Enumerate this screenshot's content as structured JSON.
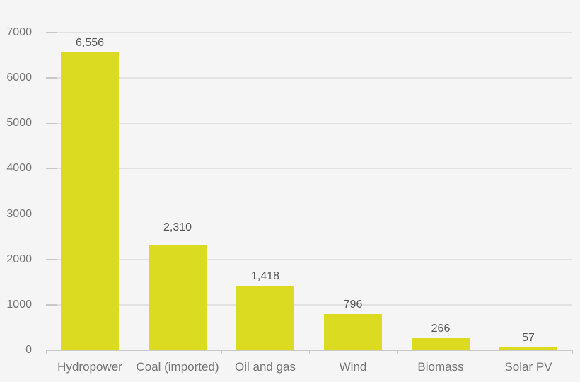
{
  "chart_data": {
    "type": "bar",
    "title": "",
    "xlabel": "",
    "ylabel": "",
    "categories": [
      "Hydropower",
      "Coal (imported)",
      "Oil and gas",
      "Wind",
      "Biomass",
      "Solar PV"
    ],
    "values": [
      6556,
      2310,
      1418,
      796,
      266,
      57
    ],
    "value_labels": [
      "6,556",
      "2,310",
      "1,418",
      "796",
      "266",
      "57"
    ],
    "ylim": [
      0,
      7000
    ],
    "y_ticks": [
      0,
      1000,
      2000,
      3000,
      4000,
      5000,
      6000,
      7000
    ],
    "y_tick_labels": [
      "0",
      "1000",
      "2000",
      "3000",
      "4000",
      "5000",
      "6000",
      "7000"
    ],
    "grid": "horizontal",
    "legend": "none",
    "label_connector_index": 1,
    "colors": {
      "background": "#f5f5f5",
      "bar": "#dbdc22",
      "gridline": "#e2e2e2",
      "axis_line": "#c8c8c8",
      "axis_text": "#757575",
      "value_text": "#565656",
      "connector": "#a3a3a3"
    }
  }
}
